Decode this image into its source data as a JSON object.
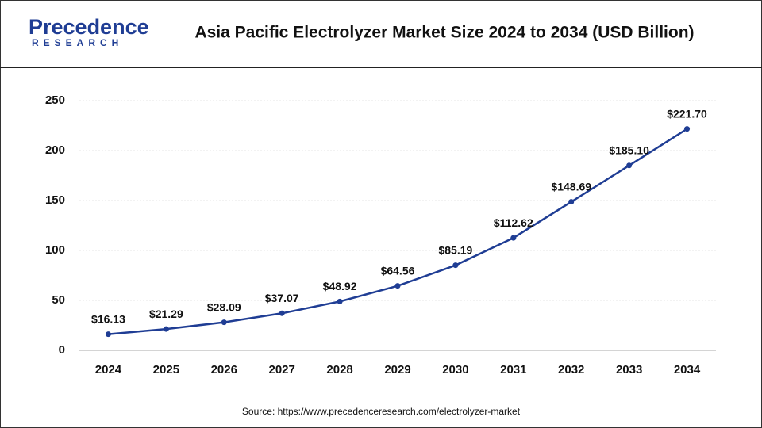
{
  "logo": {
    "name": "Precedence",
    "sub": "RESEARCH"
  },
  "chart_data": {
    "type": "line",
    "title": "Asia Pacific Electrolyzer Market Size 2024 to 2034 (USD Billion)",
    "source": "Source: https://www.precedenceresearch.com/electrolyzer-market",
    "categories": [
      "2024",
      "2025",
      "2026",
      "2027",
      "2028",
      "2029",
      "2030",
      "2031",
      "2032",
      "2033",
      "2034"
    ],
    "values": [
      16.13,
      21.29,
      28.09,
      37.07,
      48.92,
      64.56,
      85.19,
      112.62,
      148.69,
      185.1,
      221.7
    ],
    "value_labels": [
      "$16.13",
      "$21.29",
      "$28.09",
      "$37.07",
      "$48.92",
      "$64.56",
      "$85.19",
      "$112.62",
      "$148.69",
      "$185.10",
      "$221.70"
    ],
    "color": "#1f3d94",
    "ylim": [
      0,
      250
    ],
    "yticks": [
      0,
      50,
      100,
      150,
      200,
      250
    ],
    "grid": true
  }
}
